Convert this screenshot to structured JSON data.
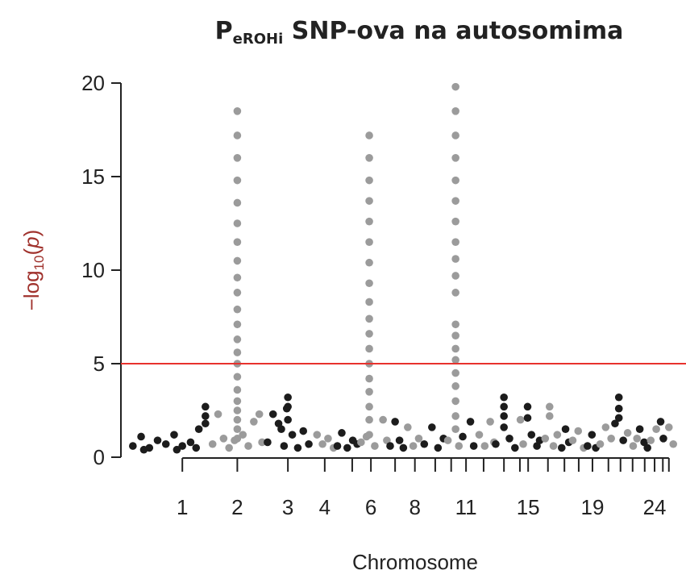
{
  "chart_data": {
    "type": "manhattan",
    "title": {
      "main": "P",
      "sub": "eROHi",
      "rest": " SNP-ova na autosomima"
    },
    "ylabel": {
      "pre": "−log",
      "sub": "10",
      "open": "(",
      "var": "p",
      "close": ")"
    },
    "xlabel": "Chromosome",
    "ylim": [
      0,
      20
    ],
    "yticks": [
      0,
      5,
      10,
      15,
      20
    ],
    "xlim": [
      0,
      100
    ],
    "xticks": [
      {
        "value": 10,
        "label": "1"
      },
      {
        "value": 20,
        "label": "2"
      },
      {
        "value": 29.2,
        "label": "3"
      },
      {
        "value": 35.9,
        "label": "4"
      },
      {
        "value": 40.9,
        "label": null
      },
      {
        "value": 44.3,
        "label": "6"
      },
      {
        "value": 48.7,
        "label": null
      },
      {
        "value": 52.3,
        "label": "8"
      },
      {
        "value": 56,
        "label": null
      },
      {
        "value": 58.9,
        "label": null
      },
      {
        "value": 61.6,
        "label": "11"
      },
      {
        "value": 64.8,
        "label": null
      },
      {
        "value": 68.5,
        "label": null
      },
      {
        "value": 71.4,
        "label": null
      },
      {
        "value": 72.9,
        "label": "15"
      },
      {
        "value": 76.5,
        "label": null
      },
      {
        "value": 79.5,
        "label": null
      },
      {
        "value": 82.1,
        "label": null
      },
      {
        "value": 84.6,
        "label": "19"
      },
      {
        "value": 87.5,
        "label": null
      },
      {
        "value": 89.7,
        "label": null
      },
      {
        "value": 91.9,
        "label": null
      },
      {
        "value": 94.1,
        "label": null
      },
      {
        "value": 95.9,
        "label": "24"
      },
      {
        "value": 97.4,
        "label": null
      },
      {
        "value": 98.5,
        "label": null
      }
    ],
    "threshold": {
      "value": 5,
      "color": "#e8322d"
    },
    "series": [
      {
        "color": "#1c1c1c",
        "x": [
          1,
          2.5,
          4,
          5.5,
          7,
          8.5,
          10,
          11.5,
          13,
          14.2,
          14.2,
          14.2,
          3,
          9,
          12.5
        ],
        "values": [
          0.6,
          1.1,
          0.5,
          0.9,
          0.7,
          1.2,
          0.6,
          0.8,
          1.5,
          2.7,
          2.2,
          1.8,
          0.4,
          0.4,
          0.5
        ]
      },
      {
        "color": "#9b9b9b",
        "x": [
          15.5,
          16.5,
          17.5,
          18.5,
          19.5,
          20,
          20,
          20,
          20,
          20,
          20,
          20,
          20,
          20,
          20,
          20,
          20,
          20,
          20,
          20,
          20,
          20,
          20,
          20,
          20,
          20,
          20,
          21,
          22,
          23,
          24,
          24.5
        ],
        "values": [
          0.7,
          2.3,
          1.0,
          0.5,
          0.9,
          1,
          1.5,
          2,
          2.5,
          3,
          3.6,
          4.3,
          5,
          5.6,
          6.3,
          7.1,
          7.9,
          8.8,
          9.6,
          10.5,
          11.5,
          12.5,
          13.6,
          14.8,
          16,
          17.2,
          18.5,
          1.2,
          0.6,
          1.9,
          2.3,
          0.8
        ]
      },
      {
        "color": "#1c1c1c",
        "x": [
          25.5,
          26.5,
          27.5,
          28.5,
          29,
          29.2,
          29.2,
          29.2,
          30,
          31,
          32,
          33,
          28
        ],
        "values": [
          0.8,
          2.3,
          1.8,
          0.6,
          2.6,
          3.2,
          2.7,
          2.0,
          1.2,
          0.5,
          1.4,
          0.7,
          1.5
        ]
      },
      {
        "color": "#9b9b9b",
        "x": [
          34.5,
          35.5,
          36.5,
          37.5
        ],
        "values": [
          1.2,
          0.7,
          1.0,
          0.5
        ]
      },
      {
        "color": "#1c1c1c",
        "x": [
          38.2,
          39,
          40,
          41,
          41.8
        ],
        "values": [
          0.6,
          1.3,
          0.5,
          0.9,
          0.7
        ]
      },
      {
        "color": "#9b9b9b",
        "x": [
          42.5,
          43.5,
          44,
          44,
          44,
          44,
          44,
          44,
          44,
          44,
          44,
          44,
          44,
          44,
          44,
          44,
          44,
          44,
          44,
          44,
          45,
          46.5,
          47.2
        ],
        "values": [
          0.8,
          1.1,
          1.2,
          2,
          2.7,
          3.5,
          4.2,
          5,
          5.8,
          6.6,
          7.4,
          8.3,
          9.3,
          10.4,
          11.5,
          12.6,
          13.7,
          14.8,
          16,
          17.2,
          0.6,
          2.0,
          0.9
        ]
      },
      {
        "color": "#1c1c1c",
        "x": [
          47.8,
          48.7,
          49.5,
          50.2
        ],
        "values": [
          0.6,
          1.9,
          0.9,
          0.5
        ]
      },
      {
        "color": "#9b9b9b",
        "x": [
          51,
          52,
          53
        ],
        "values": [
          1.6,
          0.6,
          1.0
        ]
      },
      {
        "color": "#1c1c1c",
        "x": [
          54,
          55.4,
          56.5,
          57.5
        ],
        "values": [
          0.7,
          1.6,
          0.5,
          1.0
        ]
      },
      {
        "color": "#9b9b9b",
        "x": [
          58.3,
          59.7,
          59.7,
          59.7,
          59.7,
          59.7,
          59.7,
          59.7,
          59.7,
          59.7,
          59.7,
          59.7,
          59.7,
          59.7,
          59.7,
          59.7,
          59.7,
          59.7,
          59.7,
          59.7,
          59.7,
          60.3
        ],
        "values": [
          0.9,
          1.5,
          2.2,
          3,
          3.8,
          4.5,
          5.2,
          5.8,
          6.5,
          7.1,
          8.8,
          9.7,
          10.6,
          11.5,
          12.6,
          13.7,
          14.8,
          16,
          17.2,
          18.5,
          19.8,
          0.6
        ]
      },
      {
        "color": "#1c1c1c",
        "x": [
          61,
          62.4,
          63
        ],
        "values": [
          1.1,
          1.9,
          0.6
        ]
      },
      {
        "color": "#9b9b9b",
        "x": [
          64,
          65,
          66,
          66.7
        ],
        "values": [
          1.2,
          0.6,
          1.9,
          0.8
        ]
      },
      {
        "color": "#1c1c1c",
        "x": [
          67,
          68.5,
          68.5,
          68.5,
          68.5,
          69.5,
          70.5
        ],
        "values": [
          0.7,
          3.2,
          2.7,
          2.2,
          1.6,
          1.0,
          0.5
        ]
      },
      {
        "color": "#9b9b9b",
        "x": [
          71.5,
          72
        ],
        "values": [
          2.0,
          0.7
        ]
      },
      {
        "color": "#1c1c1c",
        "x": [
          72.8,
          72.8,
          73.5,
          74.5,
          75
        ],
        "values": [
          2.7,
          2.1,
          1.2,
          0.6,
          0.9
        ]
      },
      {
        "color": "#9b9b9b",
        "x": [
          76,
          76.8,
          76.8,
          77.5,
          78.2
        ],
        "values": [
          1.0,
          2.7,
          2.2,
          0.6,
          1.2
        ]
      },
      {
        "color": "#1c1c1c",
        "x": [
          79,
          79.7,
          80.3
        ],
        "values": [
          0.5,
          1.5,
          0.8
        ]
      },
      {
        "color": "#9b9b9b",
        "x": [
          81,
          82,
          83
        ],
        "values": [
          0.9,
          1.4,
          0.5
        ]
      },
      {
        "color": "#1c1c1c",
        "x": [
          83.7,
          84.5,
          85.2
        ],
        "values": [
          0.6,
          1.2,
          0.5
        ]
      },
      {
        "color": "#9b9b9b",
        "x": [
          86,
          87,
          88
        ],
        "values": [
          0.7,
          1.6,
          1.0
        ]
      },
      {
        "color": "#1c1c1c",
        "x": [
          88.7,
          89.4,
          89.4,
          89.4,
          90.2
        ],
        "values": [
          1.8,
          3.2,
          2.6,
          2.1,
          0.9
        ]
      },
      {
        "color": "#9b9b9b",
        "x": [
          91,
          92,
          92.7
        ],
        "values": [
          1.3,
          0.6,
          1.0
        ]
      },
      {
        "color": "#1c1c1c",
        "x": [
          93.2,
          94,
          94.6
        ],
        "values": [
          1.5,
          0.8,
          0.5
        ]
      },
      {
        "color": "#9b9b9b",
        "x": [
          95.2,
          96.2
        ],
        "values": [
          0.9,
          1.5
        ]
      },
      {
        "color": "#1c1c1c",
        "x": [
          97,
          97.5
        ],
        "values": [
          1.9,
          1.0
        ]
      },
      {
        "color": "#9b9b9b",
        "x": [
          98.5,
          99.3
        ],
        "values": [
          1.6,
          0.7
        ]
      }
    ]
  }
}
